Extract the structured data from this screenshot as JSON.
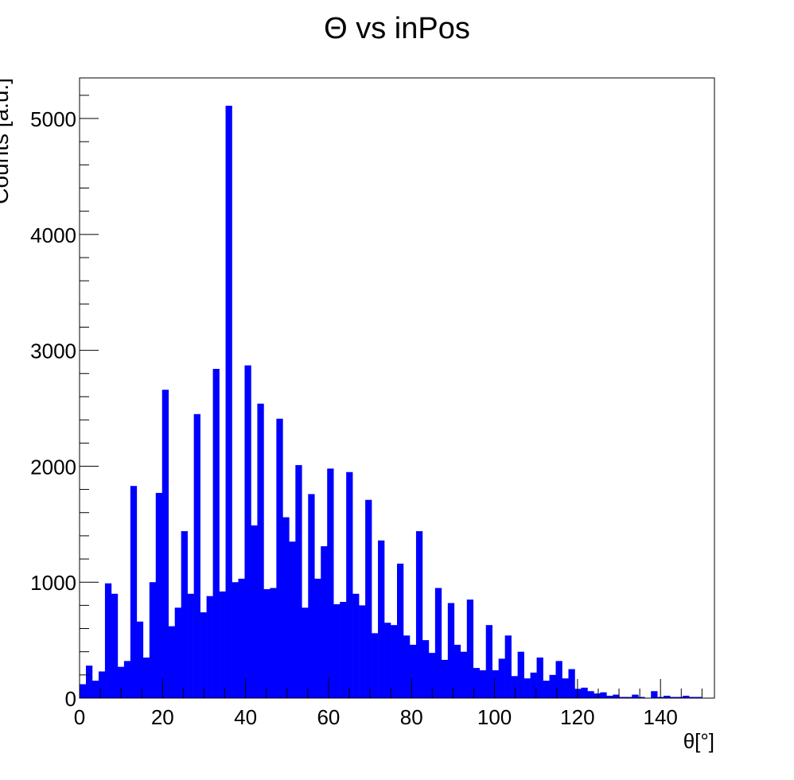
{
  "chart_data": {
    "type": "bar",
    "title": "Θ vs inPos",
    "xlabel": "θ[°]",
    "ylabel": "Counts [a.u.]",
    "xlim": [
      0,
      153
    ],
    "ylim": [
      0,
      5350
    ],
    "bin_width": 1.53,
    "x_ticks": [
      0,
      20,
      40,
      60,
      80,
      100,
      120,
      140
    ],
    "y_ticks": [
      0,
      1000,
      2000,
      3000,
      4000,
      5000
    ],
    "grid": false,
    "bar_color": "#0000ff",
    "values": [
      120,
      280,
      150,
      230,
      990,
      900,
      270,
      320,
      1830,
      660,
      350,
      1000,
      1770,
      2660,
      620,
      780,
      1440,
      900,
      2450,
      740,
      880,
      2840,
      920,
      5110,
      1000,
      1030,
      2870,
      1490,
      2540,
      940,
      950,
      2410,
      1560,
      1350,
      2010,
      780,
      1760,
      1030,
      1310,
      1980,
      810,
      830,
      1950,
      900,
      800,
      1710,
      560,
      1360,
      650,
      630,
      1160,
      540,
      460,
      1440,
      500,
      390,
      950,
      330,
      820,
      460,
      400,
      850,
      260,
      240,
      630,
      240,
      340,
      540,
      190,
      400,
      170,
      220,
      350,
      150,
      200,
      320,
      170,
      250,
      80,
      90,
      60,
      40,
      50,
      20,
      30,
      10,
      10,
      30,
      10,
      0,
      60,
      10,
      20,
      10,
      10,
      20,
      10,
      10,
      0,
      0
    ]
  }
}
